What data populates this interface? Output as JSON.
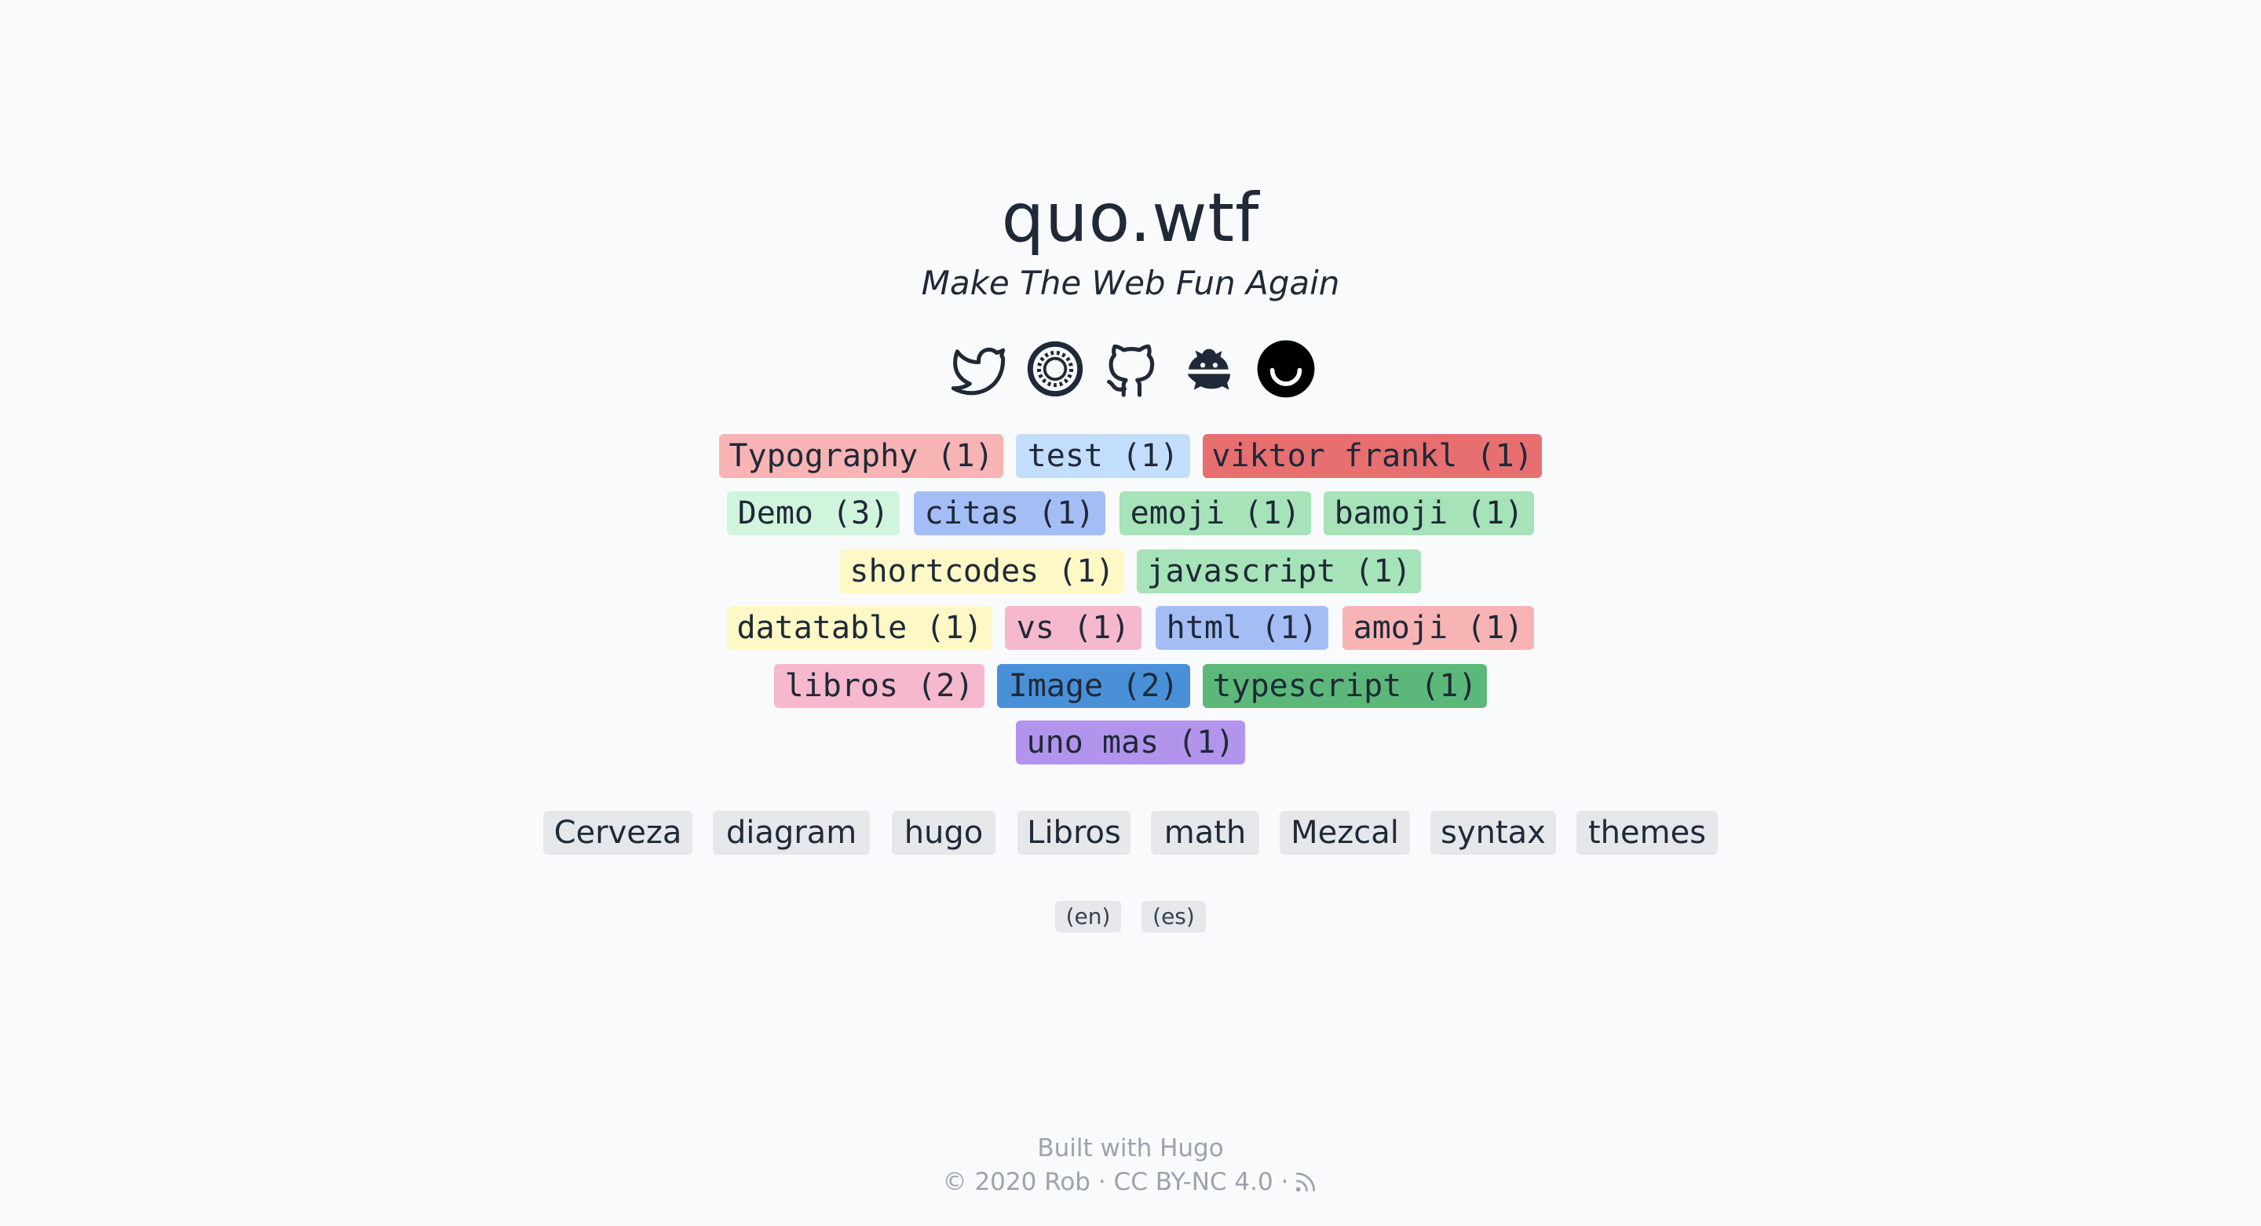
{
  "site": {
    "title": "quo.wtf",
    "subtitle": "Make The Web Fun Again"
  },
  "social": [
    "twitter-icon",
    "opencollective-icon",
    "github-icon",
    "hugo-icon",
    "ello-icon"
  ],
  "tags": [
    {
      "label": "Typography (1)",
      "color": "#f8b4b4"
    },
    {
      "label": "test (1)",
      "color": "#c3ddfd"
    },
    {
      "label": "viktor frankl (1)",
      "color": "#e86f6f"
    },
    {
      "label": "Demo (3)",
      "color": "#d1f5dc"
    },
    {
      "label": "citas (1)",
      "color": "#a4bdf5"
    },
    {
      "label": "emoji (1)",
      "color": "#a7e3b9"
    },
    {
      "label": "bamoji (1)",
      "color": "#a7e3b9"
    },
    {
      "label": "shortcodes (1)",
      "color": "#fdf8c5"
    },
    {
      "label": "javascript (1)",
      "color": "#a7e3b9"
    },
    {
      "label": "datatable (1)",
      "color": "#fdf8c5"
    },
    {
      "label": "vs (1)",
      "color": "#f5b8cc"
    },
    {
      "label": "html (1)",
      "color": "#a4bdf5"
    },
    {
      "label": "amoji (1)",
      "color": "#f8b4b4"
    },
    {
      "label": "libros (2)",
      "color": "#f5b8cc"
    },
    {
      "label": "Image (2)",
      "color": "#4a90d9"
    },
    {
      "label": "typescript (1)",
      "color": "#5cb87a"
    },
    {
      "label": "uno mas (1)",
      "color": "#b394ec"
    }
  ],
  "categories": [
    "Cerveza",
    "diagram",
    "hugo",
    "Libros",
    "math",
    "Mezcal",
    "syntax",
    "themes"
  ],
  "languages": [
    "(en)",
    "(es)"
  ],
  "footer": {
    "line1": "Built with Hugo",
    "line2": "© 2020 Rob · CC BY-NC 4.0 ·"
  }
}
